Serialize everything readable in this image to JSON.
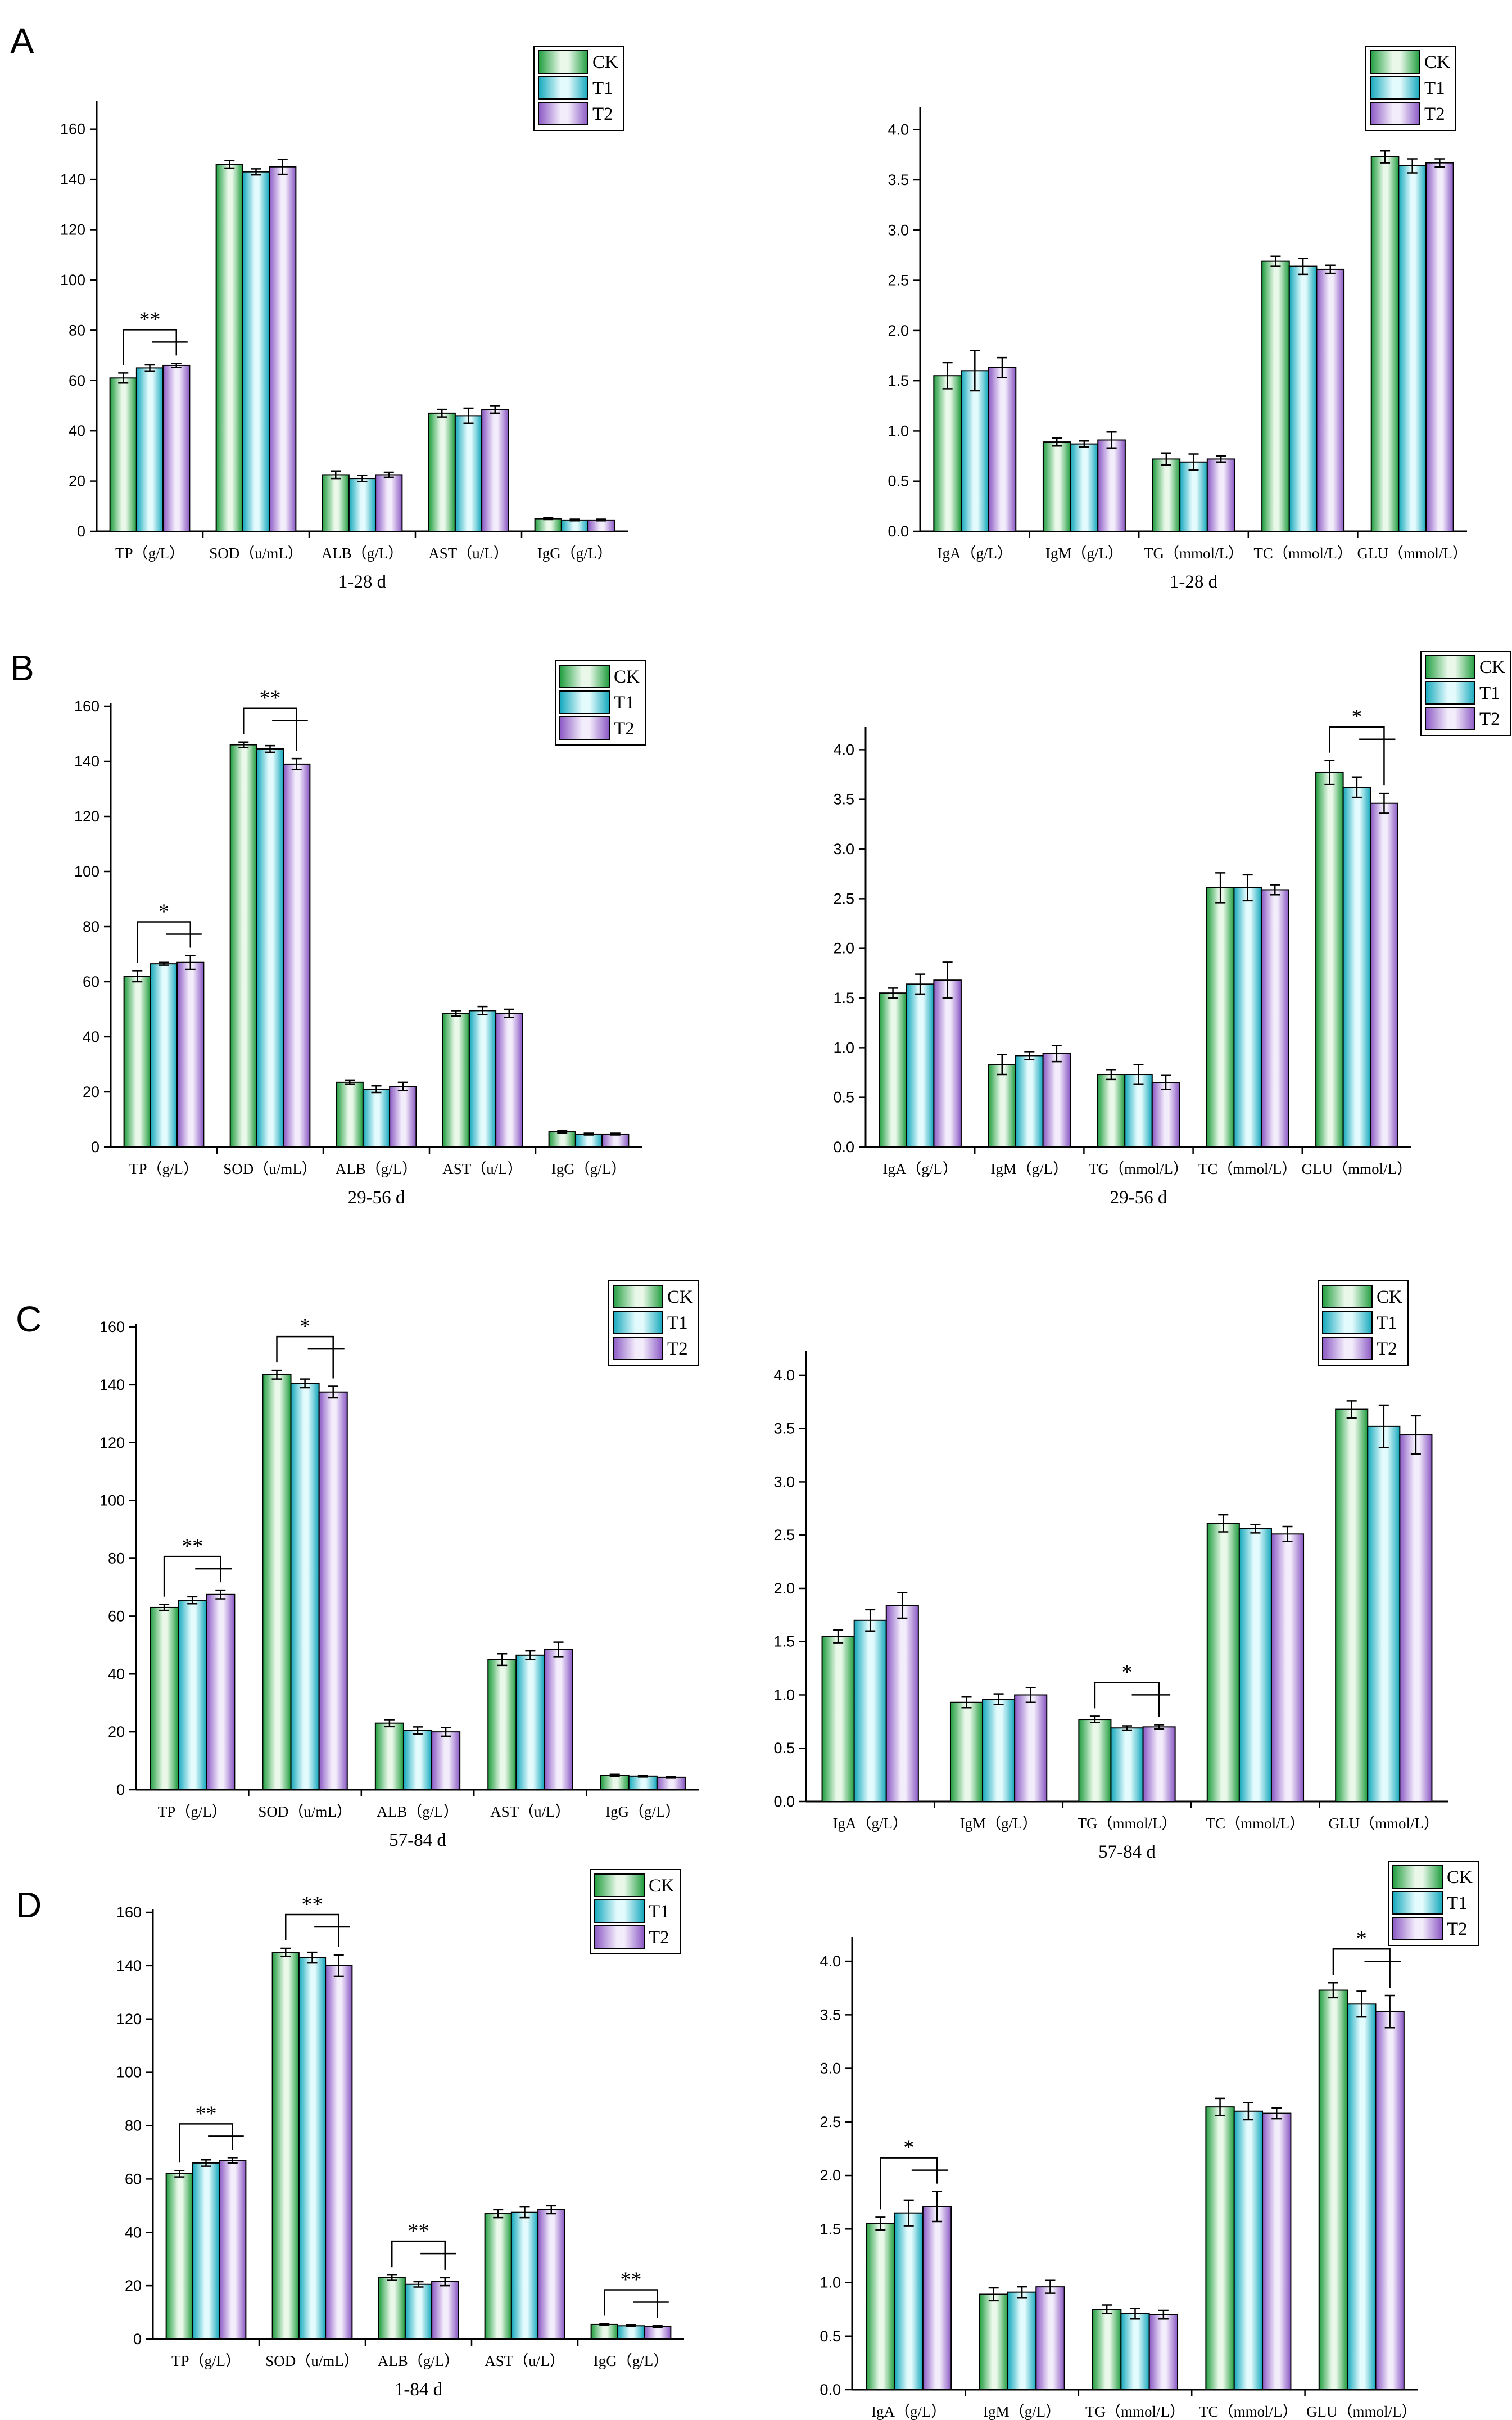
{
  "colors": {
    "CK": {
      "light": "#e9f8e9",
      "dark": "#1f9d3e"
    },
    "T1": {
      "light": "#e4fbfd",
      "dark": "#14a8bc"
    },
    "T2": {
      "light": "#f3ecfb",
      "dark": "#8a58c4"
    }
  },
  "chart_data": [
    {
      "id": "A-left",
      "panel_label": "A",
      "type": "bar",
      "title": "",
      "xlabel": "1-28 d",
      "ylabel": "",
      "ylim": [
        0,
        170
      ],
      "yticks": [
        0,
        20,
        40,
        60,
        80,
        100,
        120,
        140,
        160
      ],
      "categories": [
        "TP（g/L）",
        "SOD（u/mL）",
        "ALB（g/L）",
        "AST（u/L）",
        "IgG（g/L）"
      ],
      "series": [
        {
          "name": "CK",
          "values": [
            61,
            146,
            22.5,
            47,
            5
          ],
          "errors": [
            2,
            1.5,
            1.5,
            1.5,
            0.3
          ]
        },
        {
          "name": "T1",
          "values": [
            65,
            143,
            21,
            46,
            4.5
          ],
          "errors": [
            1.2,
            1.2,
            1.2,
            3,
            0.3
          ]
        },
        {
          "name": "T2",
          "values": [
            66,
            145,
            22.5,
            48.5,
            4.5
          ],
          "errors": [
            0.8,
            3,
            1,
            1.5,
            0.3
          ]
        }
      ],
      "legend": [
        "CK",
        "T1",
        "T2"
      ],
      "legend_position": "top-right",
      "significance": [
        {
          "category": 0,
          "label": "**"
        }
      ]
    },
    {
      "id": "A-right",
      "type": "bar",
      "title": "",
      "xlabel": "1-28 d",
      "ylabel": "",
      "ylim": [
        0,
        4.2
      ],
      "yticks": [
        0.0,
        0.5,
        1.0,
        1.5,
        2.0,
        2.5,
        3.0,
        3.5,
        4.0
      ],
      "categories": [
        "IgA（g/L）",
        "IgM（g/L）",
        "TG（mmol/L）",
        "TC（mmol/L）",
        "GLU（mmol/L）"
      ],
      "series": [
        {
          "name": "CK",
          "values": [
            1.55,
            0.89,
            0.72,
            2.69,
            3.73
          ],
          "errors": [
            0.13,
            0.04,
            0.06,
            0.05,
            0.06
          ]
        },
        {
          "name": "T1",
          "values": [
            1.6,
            0.87,
            0.69,
            2.64,
            3.64
          ],
          "errors": [
            0.2,
            0.03,
            0.08,
            0.08,
            0.07
          ]
        },
        {
          "name": "T2",
          "values": [
            1.63,
            0.91,
            0.72,
            2.61,
            3.67
          ],
          "errors": [
            0.1,
            0.08,
            0.03,
            0.04,
            0.04
          ]
        }
      ],
      "legend": [
        "CK",
        "T1",
        "T2"
      ],
      "legend_position": "top-right",
      "significance": []
    },
    {
      "id": "B-left",
      "panel_label": "B",
      "type": "bar",
      "title": "",
      "xlabel": "29-56 d",
      "ylabel": "",
      "ylim": [
        0,
        160
      ],
      "yticks": [
        0,
        20,
        40,
        60,
        80,
        100,
        120,
        140,
        160
      ],
      "categories": [
        "TP（g/L）",
        "SOD（u/mL）",
        "ALB（g/L）",
        "AST（u/L）",
        "IgG（g/L）"
      ],
      "series": [
        {
          "name": "CK",
          "values": [
            62,
            146,
            23.5,
            48.5,
            5.5
          ],
          "errors": [
            2,
            1,
            0.8,
            1,
            0.4
          ]
        },
        {
          "name": "T1",
          "values": [
            66.5,
            144.5,
            21,
            49.5,
            4.7
          ],
          "errors": [
            0.5,
            1.2,
            1.2,
            1.5,
            0.3
          ]
        },
        {
          "name": "T2",
          "values": [
            67,
            139,
            22,
            48.5,
            4.7
          ],
          "errors": [
            2.5,
            2,
            1.5,
            1.5,
            0.3
          ]
        }
      ],
      "legend": [
        "CK",
        "T1",
        "T2"
      ],
      "legend_position": "top-right",
      "significance": [
        {
          "category": 0,
          "label": "*"
        },
        {
          "category": 1,
          "label": "**"
        }
      ]
    },
    {
      "id": "B-right",
      "type": "bar",
      "title": "",
      "xlabel": "29-56 d",
      "ylabel": "",
      "ylim": [
        0,
        4.2
      ],
      "yticks": [
        0.0,
        0.5,
        1.0,
        1.5,
        2.0,
        2.5,
        3.0,
        3.5,
        4.0
      ],
      "categories": [
        "IgA（g/L）",
        "IgM（g/L）",
        "TG（mmol/L）",
        "TC（mmol/L）",
        "GLU（mmol/L）"
      ],
      "series": [
        {
          "name": "CK",
          "values": [
            1.55,
            0.83,
            0.73,
            2.61,
            3.77
          ],
          "errors": [
            0.05,
            0.1,
            0.05,
            0.15,
            0.12
          ]
        },
        {
          "name": "T1",
          "values": [
            1.64,
            0.92,
            0.73,
            2.61,
            3.62
          ],
          "errors": [
            0.1,
            0.04,
            0.1,
            0.13,
            0.1
          ]
        },
        {
          "name": "T2",
          "values": [
            1.68,
            0.94,
            0.65,
            2.59,
            3.46
          ],
          "errors": [
            0.18,
            0.08,
            0.07,
            0.05,
            0.1
          ]
        }
      ],
      "legend": [
        "CK",
        "T1",
        "T2"
      ],
      "legend_position": "top-right",
      "significance": [
        {
          "category": 4,
          "label": "*"
        }
      ]
    },
    {
      "id": "C-left",
      "panel_label": "C",
      "type": "bar",
      "title": "",
      "xlabel": "57-84 d",
      "ylabel": "",
      "ylim": [
        0,
        160
      ],
      "yticks": [
        0,
        20,
        40,
        60,
        80,
        100,
        120,
        140,
        160
      ],
      "categories": [
        "TP（g/L）",
        "SOD（u/mL）",
        "ALB（g/L）",
        "AST（u/L）",
        "IgG（g/L）"
      ],
      "series": [
        {
          "name": "CK",
          "values": [
            63,
            143.5,
            23,
            45,
            5
          ],
          "errors": [
            1,
            1.5,
            1.2,
            2,
            0.3
          ]
        },
        {
          "name": "T1",
          "values": [
            65.5,
            140.5,
            20.5,
            46.5,
            4.7
          ],
          "errors": [
            1.2,
            1.5,
            1.2,
            1.5,
            0.3
          ]
        },
        {
          "name": "T2",
          "values": [
            67.5,
            137.5,
            20,
            48.5,
            4.3
          ],
          "errors": [
            1.5,
            2,
            1.5,
            2.5,
            0.3
          ]
        }
      ],
      "legend": [
        "CK",
        "T1",
        "T2"
      ],
      "legend_position": "top-right",
      "significance": [
        {
          "category": 0,
          "label": "**"
        },
        {
          "category": 1,
          "label": "*"
        }
      ]
    },
    {
      "id": "C-right",
      "type": "bar",
      "title": "",
      "xlabel": "57-84 d",
      "ylabel": "",
      "ylim": [
        0,
        4.2
      ],
      "yticks": [
        0.0,
        0.5,
        1.0,
        1.5,
        2.0,
        2.5,
        3.0,
        3.5,
        4.0
      ],
      "categories": [
        "IgA（g/L）",
        "IgM（g/L）",
        "TG（mmol/L）",
        "TC（mmol/L）",
        "GLU（mmol/L）"
      ],
      "series": [
        {
          "name": "CK",
          "values": [
            1.55,
            0.93,
            0.77,
            2.61,
            3.68
          ],
          "errors": [
            0.06,
            0.05,
            0.03,
            0.08,
            0.08
          ]
        },
        {
          "name": "T1",
          "values": [
            1.7,
            0.96,
            0.69,
            2.56,
            3.52
          ],
          "errors": [
            0.1,
            0.05,
            0.02,
            0.04,
            0.2
          ]
        },
        {
          "name": "T2",
          "values": [
            1.84,
            1.0,
            0.7,
            2.51,
            3.44
          ],
          "errors": [
            0.12,
            0.07,
            0.02,
            0.07,
            0.18
          ]
        }
      ],
      "legend": [
        "CK",
        "T1",
        "T2"
      ],
      "legend_position": "top-right",
      "significance": [
        {
          "category": 2,
          "label": "*"
        }
      ]
    },
    {
      "id": "D-left",
      "panel_label": "D",
      "type": "bar",
      "title": "",
      "xlabel": "1-84 d",
      "ylabel": "",
      "ylim": [
        0,
        160
      ],
      "yticks": [
        0,
        20,
        40,
        60,
        80,
        100,
        120,
        140,
        160
      ],
      "categories": [
        "TP（g/L）",
        "SOD（u/mL）",
        "ALB（g/L）",
        "AST（u/L）",
        "IgG（g/L）"
      ],
      "series": [
        {
          "name": "CK",
          "values": [
            62,
            145,
            23,
            47,
            5.5
          ],
          "errors": [
            1.2,
            1.5,
            1,
            1.5,
            0.3
          ]
        },
        {
          "name": "T1",
          "values": [
            66,
            143,
            20.5,
            47.5,
            5
          ],
          "errors": [
            1.2,
            2,
            1,
            2,
            0.3
          ]
        },
        {
          "name": "T2",
          "values": [
            67,
            140,
            21.5,
            48.5,
            4.7
          ],
          "errors": [
            1,
            4,
            1.5,
            1.5,
            0.3
          ]
        }
      ],
      "legend": [
        "CK",
        "T1",
        "T2"
      ],
      "legend_position": "top-right",
      "significance": [
        {
          "category": 0,
          "label": "**"
        },
        {
          "category": 1,
          "label": "**"
        },
        {
          "category": 2,
          "label": "**"
        },
        {
          "category": 4,
          "label": "**"
        }
      ]
    },
    {
      "id": "D-right",
      "type": "bar",
      "title": "",
      "xlabel": "1-84 d",
      "ylabel": "",
      "ylim": [
        0,
        4.2
      ],
      "yticks": [
        0.0,
        0.5,
        1.0,
        1.5,
        2.0,
        2.5,
        3.0,
        3.5,
        4.0
      ],
      "categories": [
        "IgA（g/L）",
        "IgM（g/L）",
        "TG（mmol/L）",
        "TC（mmol/L）",
        "GLU（mmol/L）"
      ],
      "series": [
        {
          "name": "CK",
          "values": [
            1.55,
            0.89,
            0.75,
            2.64,
            3.73
          ],
          "errors": [
            0.06,
            0.06,
            0.04,
            0.08,
            0.07
          ]
        },
        {
          "name": "T1",
          "values": [
            1.65,
            0.91,
            0.71,
            2.6,
            3.6
          ],
          "errors": [
            0.12,
            0.05,
            0.05,
            0.08,
            0.12
          ]
        },
        {
          "name": "T2",
          "values": [
            1.71,
            0.96,
            0.7,
            2.58,
            3.53
          ],
          "errors": [
            0.14,
            0.06,
            0.04,
            0.05,
            0.15
          ]
        }
      ],
      "legend": [
        "CK",
        "T1",
        "T2"
      ],
      "legend_position": "top-right",
      "significance": [
        {
          "category": 0,
          "label": "*"
        },
        {
          "category": 4,
          "label": "*"
        }
      ]
    }
  ]
}
